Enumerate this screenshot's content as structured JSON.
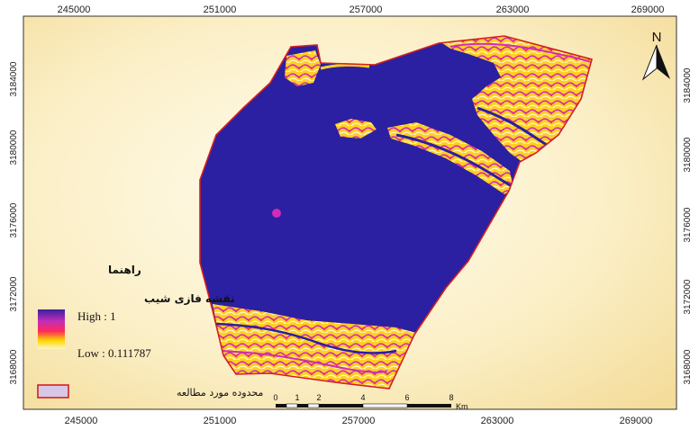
{
  "x_ticks": [
    "245000",
    "251000",
    "257000",
    "263000",
    "269000"
  ],
  "y_ticks": [
    "3184000",
    "3180000",
    "3176000",
    "3172000",
    "3168000"
  ],
  "north_label": "N",
  "legend": {
    "title": "راهنما",
    "layer_title": "نقشه فازی شیب",
    "high_label": "High : 1",
    "low_label": "Low : 0.111787",
    "study_area_label": "محدوده مورد مطالعه",
    "gradient_colors": [
      "#3b1fa0",
      "#c22eb8",
      "#ff2a5a",
      "#ffd400",
      "#fff8c0"
    ],
    "study_area_fill": "#d8c8e8",
    "study_area_stroke": "#d42020"
  },
  "scale_bar": {
    "labels": [
      "0",
      "1",
      "2",
      "4",
      "6",
      "8"
    ],
    "unit": "Km"
  },
  "colors": {
    "background_high": "#fffbe8",
    "background_low": "#f6e2a6",
    "area_fill": "#2b1fa2",
    "boundary": "#d42020",
    "yellow": "#ffd020",
    "magenta": "#d02cb8",
    "pale": "#fff6c8"
  }
}
